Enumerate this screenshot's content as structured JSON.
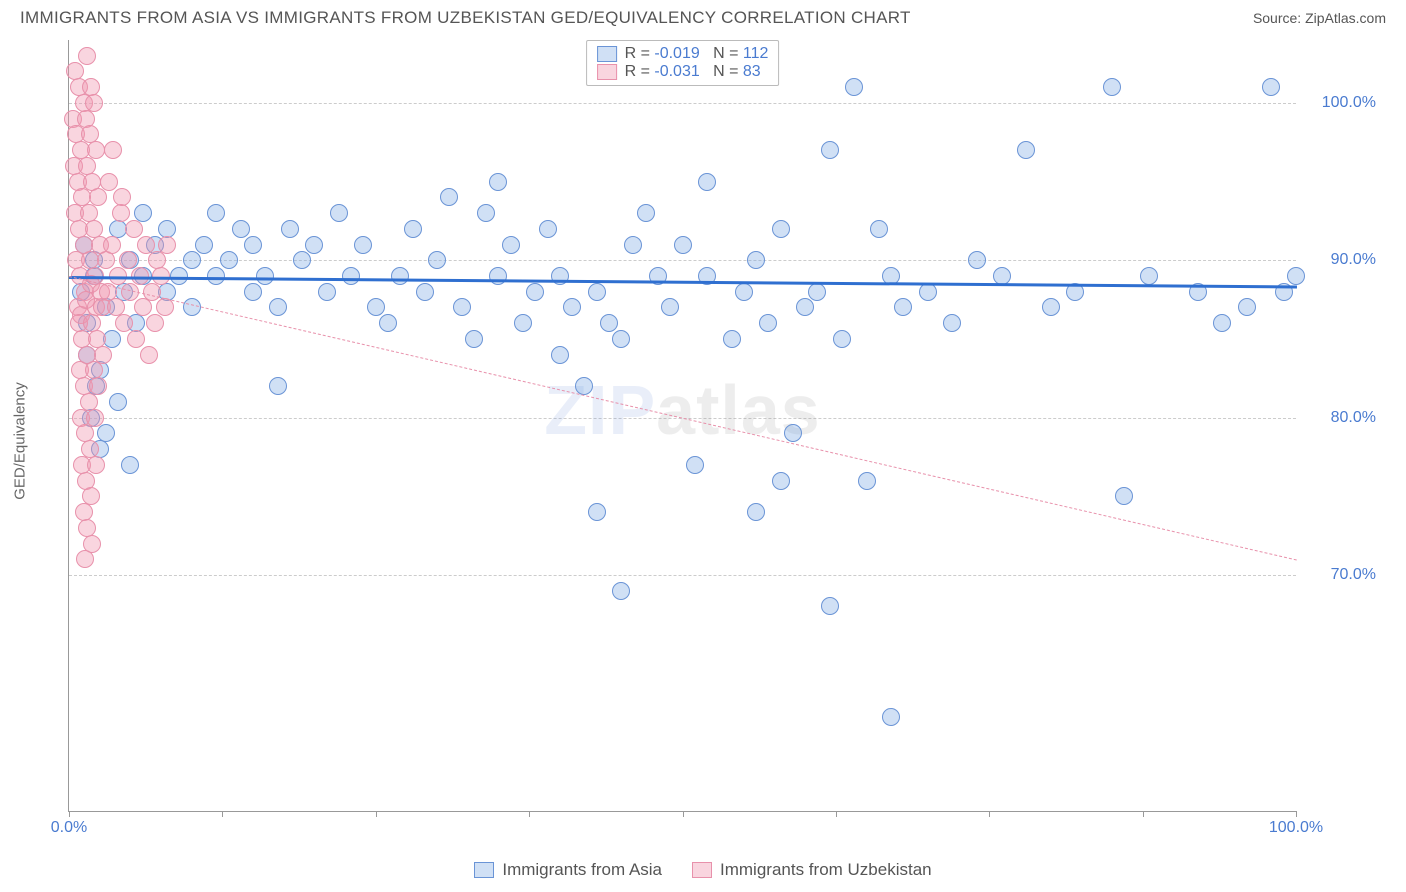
{
  "title": "IMMIGRANTS FROM ASIA VS IMMIGRANTS FROM UZBEKISTAN GED/EQUIVALENCY CORRELATION CHART",
  "source": "Source: ZipAtlas.com",
  "ylabel": "GED/Equivalency",
  "watermark": {
    "part1": "ZIP",
    "part2": "atlas"
  },
  "chart": {
    "type": "scatter",
    "xlim": [
      0,
      100
    ],
    "ylim": [
      55,
      104
    ],
    "xtick_positions": [
      0,
      12.5,
      25,
      37.5,
      50,
      62.5,
      75,
      87.5,
      100
    ],
    "xaxis_start_label": "0.0%",
    "xaxis_end_label": "100.0%",
    "ytick_positions": [
      70,
      80,
      90,
      100
    ],
    "ytick_labels": [
      "70.0%",
      "80.0%",
      "90.0%",
      "100.0%"
    ],
    "ytick_color": "#4a7bd0",
    "grid_color": "#cccccc",
    "axis_color": "#999999",
    "background_color": "#ffffff",
    "marker_radius": 9,
    "marker_border_width": 1.2,
    "series": [
      {
        "name": "Immigrants from Asia",
        "fill": "rgba(120,165,225,0.35)",
        "stroke": "#6a94d6",
        "trend": {
          "y_at_x0": 89.0,
          "y_at_x100": 88.4,
          "stroke": "#2f6fd0",
          "width": 3,
          "dash": false
        },
        "R": "-0.019",
        "N": "112",
        "points": [
          [
            1,
            88
          ],
          [
            1.5,
            86
          ],
          [
            2,
            89
          ],
          [
            2.5,
            83
          ],
          [
            2,
            90
          ],
          [
            3,
            87
          ],
          [
            3.5,
            85
          ],
          [
            1.2,
            91
          ],
          [
            4,
            92
          ],
          [
            4.5,
            88
          ],
          [
            5,
            90
          ],
          [
            5.5,
            86
          ],
          [
            6,
            89
          ],
          [
            6,
            93
          ],
          [
            7,
            91
          ],
          [
            8,
            88
          ],
          [
            8,
            92
          ],
          [
            9,
            89
          ],
          [
            10,
            87
          ],
          [
            10,
            90
          ],
          [
            11,
            91
          ],
          [
            12,
            93
          ],
          [
            12,
            89
          ],
          [
            13,
            90
          ],
          [
            14,
            92
          ],
          [
            15,
            88
          ],
          [
            15,
            91
          ],
          [
            16,
            89
          ],
          [
            17,
            87
          ],
          [
            17,
            82
          ],
          [
            18,
            92
          ],
          [
            19,
            90
          ],
          [
            20,
            91
          ],
          [
            21,
            88
          ],
          [
            22,
            93
          ],
          [
            23,
            89
          ],
          [
            24,
            91
          ],
          [
            25,
            87
          ],
          [
            26,
            86
          ],
          [
            27,
            89
          ],
          [
            28,
            92
          ],
          [
            29,
            88
          ],
          [
            30,
            90
          ],
          [
            31,
            94
          ],
          [
            32,
            87
          ],
          [
            33,
            85
          ],
          [
            34,
            93
          ],
          [
            35,
            89
          ],
          [
            35,
            95
          ],
          [
            36,
            91
          ],
          [
            37,
            86
          ],
          [
            38,
            88
          ],
          [
            39,
            92
          ],
          [
            40,
            84
          ],
          [
            40,
            89
          ],
          [
            41,
            87
          ],
          [
            42,
            82
          ],
          [
            43,
            74
          ],
          [
            43,
            88
          ],
          [
            44,
            86
          ],
          [
            45,
            85
          ],
          [
            45,
            69
          ],
          [
            46,
            91
          ],
          [
            47,
            93
          ],
          [
            48,
            89
          ],
          [
            49,
            87
          ],
          [
            50,
            91
          ],
          [
            51,
            77
          ],
          [
            52,
            89
          ],
          [
            52,
            95
          ],
          [
            54,
            85
          ],
          [
            55,
            88
          ],
          [
            56,
            90
          ],
          [
            56,
            74
          ],
          [
            57,
            86
          ],
          [
            58,
            76
          ],
          [
            58,
            92
          ],
          [
            59,
            79
          ],
          [
            60,
            87
          ],
          [
            61,
            88
          ],
          [
            62,
            68
          ],
          [
            62,
            97
          ],
          [
            63,
            85
          ],
          [
            64,
            101
          ],
          [
            65,
            76
          ],
          [
            66,
            92
          ],
          [
            67,
            89
          ],
          [
            67,
            61
          ],
          [
            68,
            87
          ],
          [
            70,
            88
          ],
          [
            72,
            86
          ],
          [
            74,
            90
          ],
          [
            76,
            89
          ],
          [
            78,
            97
          ],
          [
            80,
            87
          ],
          [
            82,
            88
          ],
          [
            85,
            101
          ],
          [
            86,
            75
          ],
          [
            88,
            89
          ],
          [
            92,
            88
          ],
          [
            94,
            86
          ],
          [
            96,
            87
          ],
          [
            98,
            101
          ],
          [
            99,
            88
          ],
          [
            100,
            89
          ],
          [
            3,
            79
          ],
          [
            4,
            81
          ],
          [
            5,
            77
          ],
          [
            2.5,
            78
          ],
          [
            1.8,
            80
          ],
          [
            2.2,
            82
          ],
          [
            1.5,
            84
          ]
        ]
      },
      {
        "name": "Immigrants from Uzbekistan",
        "fill": "rgba(240,150,175,0.40)",
        "stroke": "#e891ab",
        "trend": {
          "y_at_x0": 89.0,
          "y_at_x100": 71.0,
          "stroke": "#e891ab",
          "width": 1.2,
          "dash": true
        },
        "R": "-0.031",
        "N": "83",
        "points": [
          [
            0.5,
            102
          ],
          [
            0.8,
            101
          ],
          [
            1.2,
            100
          ],
          [
            1.5,
            103
          ],
          [
            0.3,
            99
          ],
          [
            1.8,
            101
          ],
          [
            0.6,
            98
          ],
          [
            1.0,
            97
          ],
          [
            1.4,
            99
          ],
          [
            0.4,
            96
          ],
          [
            1.7,
            98
          ],
          [
            2.0,
            100
          ],
          [
            0.7,
            95
          ],
          [
            1.1,
            94
          ],
          [
            1.5,
            96
          ],
          [
            0.5,
            93
          ],
          [
            1.9,
            95
          ],
          [
            2.2,
            97
          ],
          [
            0.8,
            92
          ],
          [
            1.2,
            91
          ],
          [
            1.6,
            93
          ],
          [
            0.6,
            90
          ],
          [
            2.0,
            92
          ],
          [
            2.4,
            94
          ],
          [
            0.9,
            89
          ],
          [
            1.3,
            88
          ],
          [
            1.7,
            90
          ],
          [
            0.7,
            87
          ],
          [
            2.1,
            89
          ],
          [
            2.5,
            91
          ],
          [
            1.0,
            86.5
          ],
          [
            1.4,
            87.5
          ],
          [
            1.8,
            88.5
          ],
          [
            0.8,
            86
          ],
          [
            2.2,
            87
          ],
          [
            2.6,
            88
          ],
          [
            1.1,
            85
          ],
          [
            1.5,
            84
          ],
          [
            1.9,
            86
          ],
          [
            0.9,
            83
          ],
          [
            2.3,
            85
          ],
          [
            2.7,
            87
          ],
          [
            1.2,
            82
          ],
          [
            1.6,
            81
          ],
          [
            2.0,
            83
          ],
          [
            1.0,
            80
          ],
          [
            2.4,
            82
          ],
          [
            2.8,
            84
          ],
          [
            1.3,
            79
          ],
          [
            1.7,
            78
          ],
          [
            2.1,
            80
          ],
          [
            1.1,
            77
          ],
          [
            1.4,
            76
          ],
          [
            1.8,
            75
          ],
          [
            2.2,
            77
          ],
          [
            1.2,
            74
          ],
          [
            1.5,
            73
          ],
          [
            1.9,
            72
          ],
          [
            1.3,
            71
          ],
          [
            3.0,
            90
          ],
          [
            3.2,
            88
          ],
          [
            3.5,
            91
          ],
          [
            3.8,
            87
          ],
          [
            4.0,
            89
          ],
          [
            4.2,
            93
          ],
          [
            4.5,
            86
          ],
          [
            4.8,
            90
          ],
          [
            5.0,
            88
          ],
          [
            5.3,
            92
          ],
          [
            5.5,
            85
          ],
          [
            5.8,
            89
          ],
          [
            6.0,
            87
          ],
          [
            6.3,
            91
          ],
          [
            6.5,
            84
          ],
          [
            6.8,
            88
          ],
          [
            7.0,
            86
          ],
          [
            7.2,
            90
          ],
          [
            7.5,
            89
          ],
          [
            7.8,
            87
          ],
          [
            8.0,
            91
          ],
          [
            3.3,
            95
          ],
          [
            3.6,
            97
          ],
          [
            4.3,
            94
          ]
        ]
      }
    ]
  },
  "legend_top": {
    "R_label": "R =",
    "N_label": "N =",
    "value_color": "#4a7bd0",
    "label_color": "#555555"
  },
  "legend_bottom": {
    "items": [
      "Immigrants from Asia",
      "Immigrants from Uzbekistan"
    ]
  }
}
